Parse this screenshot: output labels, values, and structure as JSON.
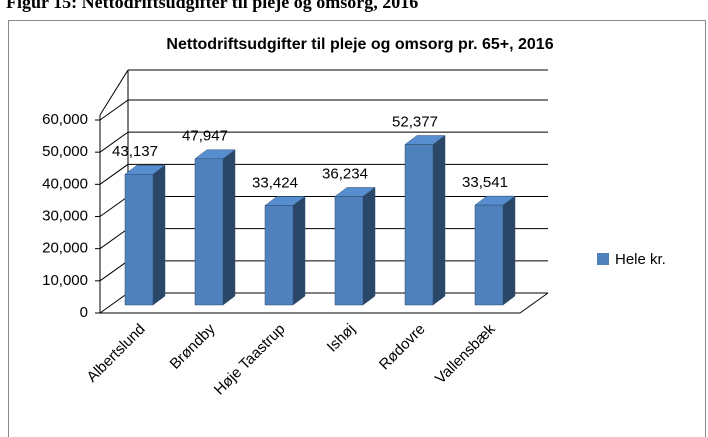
{
  "figure_caption": "Figur 15: Nettodriftsudgifter til pleje og omsorg, 2016",
  "chart_data": {
    "type": "bar3d",
    "title": "Nettodriftsudgifter til pleje og omsorg pr. 65+, 2016",
    "categories": [
      "Albertslund",
      "Brøndby",
      "Høje Taastrup",
      "Ishøj",
      "Rødovre",
      "Vallensbæk"
    ],
    "series": [
      {
        "name": "Hele kr.",
        "color": "#4f81bd",
        "values": [
          43137,
          47947,
          33424,
          36234,
          52377,
          33541
        ],
        "value_labels": [
          "43,137",
          "47,947",
          "33,424",
          "36,234",
          "52,377",
          "33,541"
        ]
      }
    ],
    "ylim": [
      0,
      60000
    ],
    "yticks": [
      0,
      {
        "value": 10000,
        "label": "10,000"
      },
      {
        "value": 20000,
        "label": "20,000"
      },
      {
        "value": 30000,
        "label": "30,000"
      },
      {
        "value": 40000,
        "label": "40,000"
      },
      {
        "value": 50000,
        "label": "50,000"
      },
      {
        "value": 60000,
        "label": "60,000"
      }
    ],
    "grid": true,
    "legend": "right"
  }
}
